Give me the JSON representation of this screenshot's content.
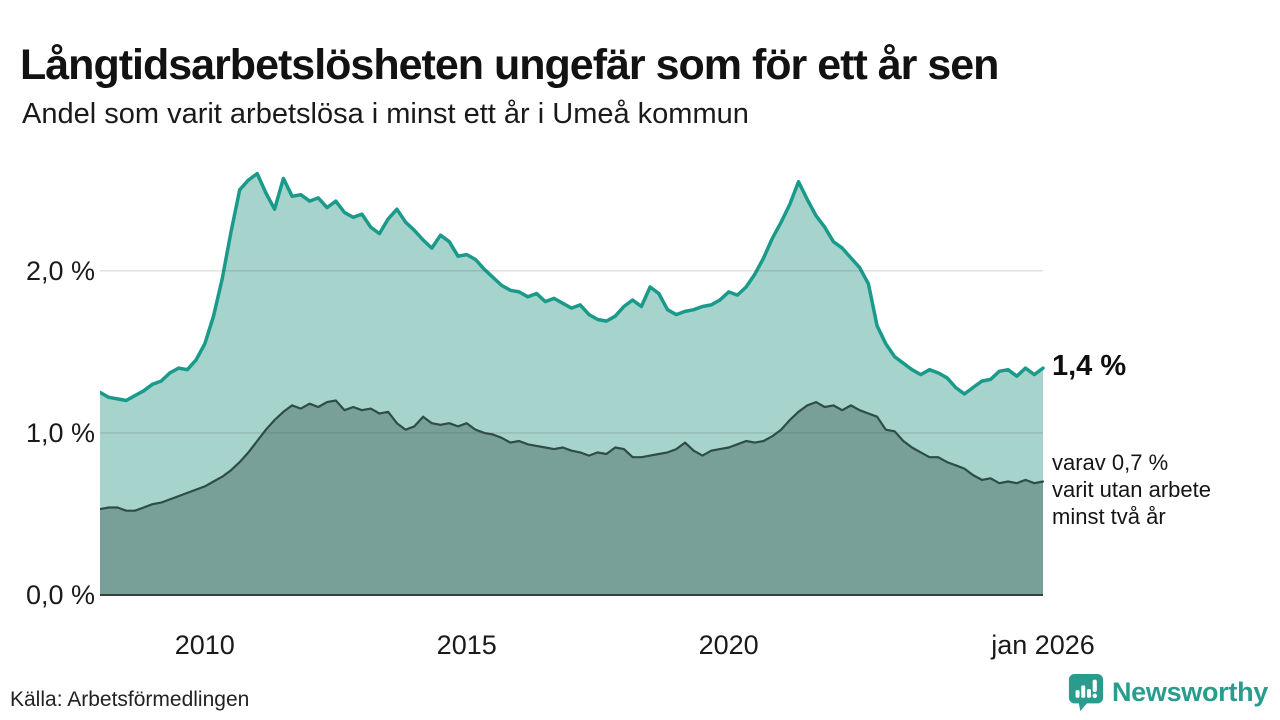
{
  "header": {
    "title": "Långtidsarbetslösheten ungefär som för ett år sen",
    "subtitle": "Andel som varit arbetslösa i minst ett år i Umeå kommun"
  },
  "chart_data": {
    "type": "area",
    "title": "Långtidsarbetslösheten ungefär som för ett år sen",
    "subtitle": "Andel som varit arbetslösa i minst ett år i Umeå kommun",
    "xlim": [
      2008.0,
      2026.0
    ],
    "ylim": [
      0,
      2.69
    ],
    "x_step_years": 0.166667,
    "grid": "horizontal",
    "x_ticks": [
      {
        "label": "2010",
        "year": 2010
      },
      {
        "label": "2015",
        "year": 2015
      },
      {
        "label": "2020",
        "year": 2020
      },
      {
        "label": "jan 2026",
        "year": 2026
      }
    ],
    "y_ticks": [
      {
        "label": "0,0 %",
        "value": 0
      },
      {
        "label": "1,0 %",
        "value": 1
      },
      {
        "label": "2,0 %",
        "value": 2
      }
    ],
    "series": [
      {
        "name": "arbetslösa minst ett år",
        "line_color": "#1a9a8a",
        "fill_color": "#a6d4cd",
        "line_width": 3.5,
        "end_label": "1,4 %",
        "end_value": 1.4,
        "values": [
          1.25,
          1.22,
          1.21,
          1.2,
          1.23,
          1.26,
          1.3,
          1.32,
          1.37,
          1.4,
          1.39,
          1.45,
          1.55,
          1.72,
          1.95,
          2.24,
          2.5,
          2.56,
          2.6,
          2.48,
          2.38,
          2.57,
          2.46,
          2.47,
          2.43,
          2.45,
          2.39,
          2.43,
          2.36,
          2.33,
          2.35,
          2.27,
          2.23,
          2.32,
          2.38,
          2.3,
          2.25,
          2.19,
          2.14,
          2.22,
          2.18,
          2.09,
          2.1,
          2.07,
          2.01,
          1.96,
          1.91,
          1.88,
          1.87,
          1.84,
          1.86,
          1.81,
          1.83,
          1.8,
          1.77,
          1.79,
          1.73,
          1.7,
          1.69,
          1.72,
          1.78,
          1.82,
          1.78,
          1.9,
          1.86,
          1.76,
          1.73,
          1.75,
          1.76,
          1.78,
          1.79,
          1.82,
          1.87,
          1.85,
          1.9,
          1.98,
          2.08,
          2.2,
          2.3,
          2.41,
          2.55,
          2.44,
          2.34,
          2.27,
          2.18,
          2.14,
          2.08,
          2.02,
          1.92,
          1.66,
          1.55,
          1.47,
          1.43,
          1.39,
          1.36,
          1.39,
          1.37,
          1.34,
          1.28,
          1.24,
          1.28,
          1.32,
          1.33,
          1.38,
          1.39,
          1.35,
          1.4,
          1.36,
          1.4
        ]
      },
      {
        "name": "utan arbete minst två år",
        "line_color": "#2d4d46",
        "fill_color": "#78a098",
        "line_width": 2.2,
        "end_value": 0.7,
        "values": [
          0.53,
          0.54,
          0.54,
          0.52,
          0.52,
          0.54,
          0.56,
          0.57,
          0.59,
          0.61,
          0.63,
          0.65,
          0.67,
          0.7,
          0.73,
          0.77,
          0.82,
          0.88,
          0.95,
          1.02,
          1.08,
          1.13,
          1.17,
          1.15,
          1.18,
          1.16,
          1.19,
          1.2,
          1.14,
          1.16,
          1.14,
          1.15,
          1.12,
          1.13,
          1.06,
          1.02,
          1.04,
          1.1,
          1.06,
          1.05,
          1.06,
          1.04,
          1.06,
          1.02,
          1.0,
          0.99,
          0.97,
          0.94,
          0.95,
          0.93,
          0.92,
          0.91,
          0.9,
          0.91,
          0.89,
          0.88,
          0.86,
          0.88,
          0.87,
          0.91,
          0.9,
          0.85,
          0.85,
          0.86,
          0.87,
          0.88,
          0.9,
          0.94,
          0.89,
          0.86,
          0.89,
          0.9,
          0.91,
          0.93,
          0.95,
          0.94,
          0.95,
          0.98,
          1.02,
          1.08,
          1.13,
          1.17,
          1.19,
          1.16,
          1.17,
          1.14,
          1.17,
          1.14,
          1.12,
          1.1,
          1.02,
          1.01,
          0.95,
          0.91,
          0.88,
          0.85,
          0.85,
          0.82,
          0.8,
          0.78,
          0.74,
          0.71,
          0.72,
          0.69,
          0.7,
          0.69,
          0.71,
          0.69,
          0.7
        ]
      }
    ],
    "end_label": "1,4 %",
    "annotation_lines": [
      "varav 0,7 %",
      "varit utan arbete",
      "minst två år"
    ],
    "colors": {
      "grid": "#e2e2e2",
      "baseline": "#3c3c3c",
      "background": "#ffffff"
    }
  },
  "footer": {
    "source": "Källa: Arbetsförmedlingen",
    "brand": "Newsworthy",
    "brand_color": "#2a9c8d"
  }
}
